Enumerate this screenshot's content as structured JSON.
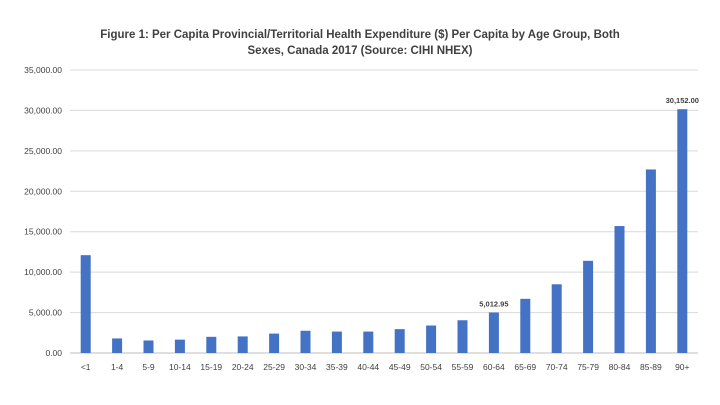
{
  "chart_data": {
    "type": "bar",
    "title_line1": "Figure 1: Per Capita Provincial/Territorial Health Expenditure ($) Per Capita by Age Group, Both",
    "title_line2": "Sexes,  Canada 2017 (Source: CIHI NHEX)",
    "xlabel": "",
    "ylabel": "",
    "ylim": [
      0,
      35000
    ],
    "yticks": [
      "0.00",
      "5,000.00",
      "10,000.00",
      "15,000.00",
      "20,000.00",
      "25,000.00",
      "30,000.00",
      "35,000.00"
    ],
    "grid": true,
    "bar_color": "#4472C4",
    "categories": [
      "<1",
      "1-4",
      "5-9",
      "10-14",
      "15-19",
      "20-24",
      "25-29",
      "30-34",
      "35-39",
      "40-44",
      "45-49",
      "50-54",
      "55-59",
      "60-64",
      "65-69",
      "70-74",
      "75-79",
      "80-84",
      "85-89",
      "90+"
    ],
    "values": [
      12100,
      1800,
      1550,
      1650,
      2000,
      2050,
      2400,
      2750,
      2650,
      2650,
      2950,
      3400,
      4050,
      5012.95,
      6700,
      8500,
      11400,
      15700,
      22700,
      30152
    ],
    "data_labels": [
      {
        "index": 13,
        "text": "5,012.95"
      },
      {
        "index": 19,
        "text": "30,152.00"
      }
    ]
  }
}
